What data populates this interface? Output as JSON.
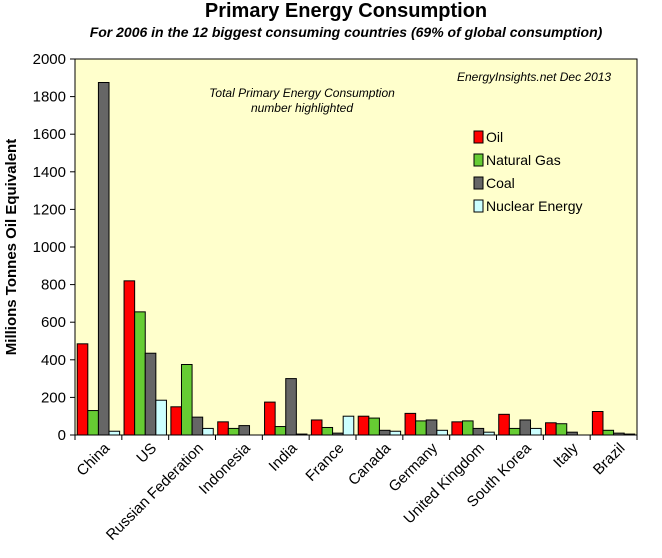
{
  "chart_data": {
    "type": "bar",
    "title": "Primary Energy Consumption",
    "subtitle": "For 2006 in the 12 biggest consuming countries (69% of global consumption)",
    "ylabel": "Millions Tonnes Oil Equivalent",
    "xlabel": "",
    "ylim": [
      0,
      2000
    ],
    "yticks": [
      0,
      200,
      400,
      600,
      800,
      1000,
      1200,
      1400,
      1600,
      1800,
      2000
    ],
    "categories": [
      "China",
      "US",
      "Russian Federation",
      "Indonesia",
      "India",
      "France",
      "Canada",
      "Germany",
      "United Kingdom",
      "South Korea",
      "Italy",
      "Brazil"
    ],
    "series": [
      {
        "name": "Oil",
        "color": "#ff0000",
        "values": [
          485,
          820,
          150,
          70,
          175,
          80,
          100,
          115,
          70,
          110,
          65,
          125
        ]
      },
      {
        "name": "Natural Gas",
        "color": "#66cc33",
        "values": [
          130,
          655,
          375,
          35,
          45,
          40,
          90,
          75,
          75,
          35,
          60,
          25
        ]
      },
      {
        "name": "Coal",
        "color": "#666666",
        "values": [
          1875,
          435,
          95,
          50,
          300,
          10,
          25,
          80,
          35,
          80,
          15,
          10
        ]
      },
      {
        "name": "Nuclear Energy",
        "color": "#ccffff",
        "values": [
          20,
          185,
          35,
          0,
          5,
          100,
          20,
          25,
          15,
          35,
          0,
          5
        ]
      }
    ],
    "annotations": [
      "Total Primary Energy Consumption",
      "number highlighted",
      "EnergyInsights.net  Dec 2013"
    ],
    "legend_position": "right",
    "grid": false,
    "plot_background": "#ffffcc"
  }
}
